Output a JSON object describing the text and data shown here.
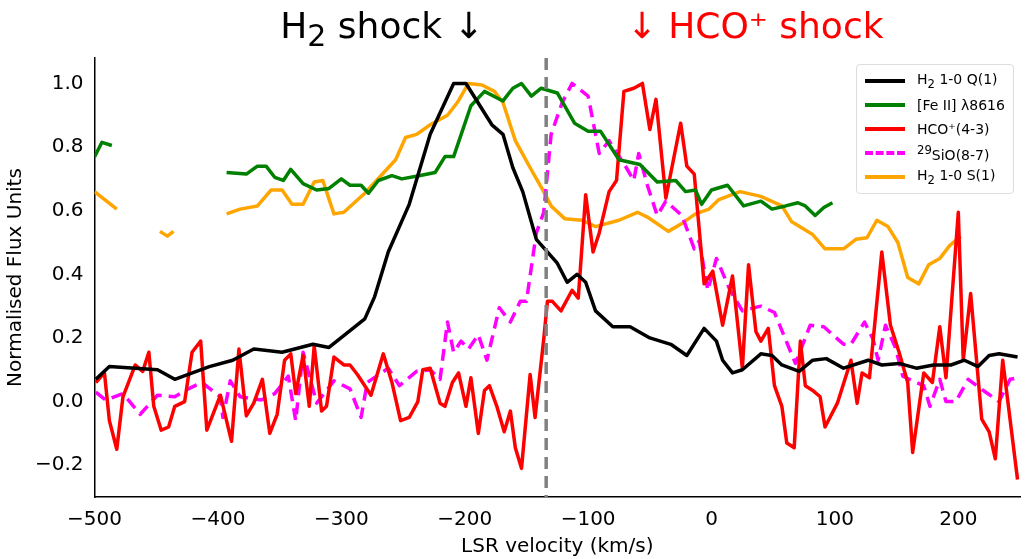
{
  "chart_data": {
    "type": "line",
    "xlabel": "LSR velocity (km/s)",
    "ylabel": "Normalised Flux Units",
    "annotations": [
      "H$_{2}$ shock ↓",
      "↓ HCO⁺ shock"
    ],
    "xlim": [
      -500,
      250
    ],
    "xticks": [
      {
        "value": -500,
        "label": "−500"
      },
      {
        "value": -400,
        "label": "−400"
      },
      {
        "value": -300,
        "label": "−300"
      },
      {
        "value": -200,
        "label": "−200"
      },
      {
        "value": -100,
        "label": "−100"
      },
      0,
      100,
      200
    ],
    "ylim": [
      -0.3,
      1.08
    ],
    "yticks": [
      {
        "value": -0.2,
        "label": "−0.2"
      },
      {
        "value": 0,
        "label": "0.0"
      },
      {
        "value": 0.2,
        "label": "0.2"
      },
      {
        "value": 0.4,
        "label": "0.4"
      },
      {
        "value": 0.6,
        "label": "0.6"
      },
      {
        "value": 0.8,
        "label": "0.8"
      },
      {
        "value": 1,
        "label": "1.0"
      }
    ],
    "grid": false,
    "legend": "top right",
    "ref_lines": [
      {
        "axis": "x",
        "value": -134,
        "color": "#808080",
        "line_style": "dashed"
      }
    ],
    "series": [
      {
        "name": "H$_{2}$ 1-0 Q(1)",
        "color": "#000000",
        "x": [
          -499,
          -488,
          -449,
          -435,
          -407,
          -388,
          -371,
          -348,
          -323,
          -310,
          -281,
          -273,
          -262,
          -245,
          -228,
          -209,
          -199,
          -178,
          -169,
          -161,
          -153,
          -142,
          -125,
          -117,
          -109,
          -102,
          -94,
          -80,
          -66,
          -50,
          -33,
          -20,
          -6,
          4,
          9,
          17,
          25,
          40,
          49,
          57,
          71,
          82,
          93,
          107,
          127,
          138,
          152,
          166,
          180,
          194,
          205,
          216,
          225,
          233,
          248
        ],
        "values": [
          0.07,
          0.11,
          0.1,
          0.07,
          0.11,
          0.13,
          0.165,
          0.155,
          0.18,
          0.17,
          0.26,
          0.33,
          0.47,
          0.62,
          0.84,
          1.0,
          1.0,
          0.87,
          0.84,
          0.735,
          0.66,
          0.51,
          0.435,
          0.375,
          0.4,
          0.375,
          0.285,
          0.235,
          0.235,
          0.2,
          0.18,
          0.145,
          0.23,
          0.19,
          0.13,
          0.09,
          0.1,
          0.15,
          0.145,
          0.115,
          0.095,
          0.13,
          0.135,
          0.105,
          0.13,
          0.115,
          0.12,
          0.105,
          0.115,
          0.115,
          0.13,
          0.11,
          0.145,
          0.15,
          0.14
        ]
      },
      {
        "name": "[Fe II] λ8616",
        "color": "#008000",
        "x": [
          -500,
          -494,
          -486,
          -440,
          -393,
          -377,
          -368,
          -361,
          -354,
          -347,
          -341,
          -331,
          -320,
          -310,
          -300,
          -293,
          -284,
          -278,
          -270,
          -259,
          -251,
          -237,
          -224,
          -216,
          -209,
          -195,
          -184,
          -169,
          -161,
          -154,
          -146,
          -138,
          -125,
          -111,
          -100,
          -90,
          -75,
          -58,
          -44,
          -29,
          -21,
          -13,
          -8,
          0,
          13,
          26,
          40,
          49,
          60,
          70,
          76,
          84,
          91,
          98
        ],
        "values": [
          0.77,
          0.815,
          0.805,
          null,
          0.72,
          0.715,
          0.74,
          0.74,
          0.705,
          0.695,
          0.73,
          0.685,
          0.665,
          0.67,
          0.7,
          0.68,
          0.68,
          0.655,
          0.695,
          0.71,
          0.7,
          0.71,
          0.72,
          0.77,
          0.77,
          0.93,
          0.975,
          0.945,
          0.985,
          1.0,
          0.96,
          0.985,
          0.97,
          0.875,
          0.85,
          0.85,
          0.76,
          0.745,
          0.69,
          0.695,
          0.66,
          0.665,
          0.62,
          0.665,
          0.68,
          0.615,
          0.63,
          0.605,
          0.615,
          0.625,
          0.615,
          0.585,
          0.61,
          0.625
        ]
      },
      {
        "name": "HCO⁺(4-3)",
        "color": "#ff0000",
        "x": [
          -499,
          -492,
          -488,
          -482,
          -477,
          -467,
          -461,
          -456,
          -452,
          -446,
          -440,
          -435,
          -427,
          -421,
          -414,
          -409,
          -398,
          -389,
          -383,
          -377,
          -371,
          -364,
          -358,
          -352,
          -346,
          -341,
          -337,
          -331,
          -326,
          -322,
          -316,
          -312,
          -306,
          -298,
          -293,
          -287,
          -281,
          -276,
          -266,
          -259,
          -252,
          -245,
          -238,
          -234,
          -228,
          -220,
          -216,
          -210,
          -205,
          -199,
          -195,
          -189,
          -184,
          -180,
          -174,
          -168,
          -163,
          -159,
          -154,
          -147,
          -143,
          -136,
          -133,
          -129,
          -122,
          -113,
          -108,
          -102,
          -96,
          -91,
          -83,
          -77,
          -71,
          -63,
          -56,
          -50,
          -45,
          -37,
          -25,
          -20,
          -14,
          -6,
          1,
          9,
          17,
          25,
          30,
          36,
          40,
          46,
          51,
          57,
          61,
          67,
          72,
          76,
          82,
          88,
          92,
          102,
          113,
          118,
          122,
          128,
          138,
          145,
          152,
          159,
          163,
          172,
          179,
          185,
          190,
          200,
          204,
          210,
          219,
          225,
          230,
          236,
          248
        ],
        "values": [
          0.06,
          0.09,
          -0.06,
          -0.15,
          0.015,
          0.115,
          0.095,
          0.155,
          -0.015,
          -0.09,
          -0.08,
          -0.015,
          0.0,
          0.155,
          0.19,
          -0.09,
          0.02,
          -0.125,
          0.165,
          -0.045,
          -0.005,
          0.07,
          -0.1,
          -0.04,
          0.13,
          0.15,
          0.025,
          0.145,
          -0.015,
          0.175,
          -0.03,
          -0.015,
          0.14,
          0.115,
          0.115,
          0.085,
          0.05,
          0.02,
          0.15,
          0.06,
          -0.06,
          -0.05,
          0.0,
          0.1,
          0.105,
          -0.005,
          -0.015,
          0.06,
          0.09,
          -0.015,
          0.075,
          -0.1,
          0.035,
          0.05,
          -0.015,
          -0.095,
          -0.03,
          -0.145,
          -0.21,
          0.085,
          -0.05,
          0.195,
          0.315,
          0.315,
          0.285,
          0.35,
          0.325,
          0.65,
          0.47,
          0.53,
          0.66,
          0.695,
          0.975,
          0.985,
          1.0,
          0.855,
          0.95,
          0.64,
          0.875,
          0.74,
          0.715,
          0.37,
          0.41,
          0.24,
          0.395,
          0.105,
          0.43,
          0.22,
          0.19,
          0.23,
          0.05,
          -0.015,
          -0.13,
          -0.145,
          0.19,
          0.05,
          0.035,
          0.015,
          -0.08,
          -0.005,
          0.13,
          -0.005,
          0.09,
          0.075,
          0.47,
          0.24,
          0.155,
          0.06,
          -0.16,
          0.09,
          0.06,
          0.235,
          0.075,
          0.595,
          0.13,
          0.34,
          -0.055,
          -0.095,
          -0.18,
          0.13,
          -0.245
        ]
      },
      {
        "name": "$^{29}$SiO(8-7)",
        "color": "#ff00ff",
        "line_style": "dashed",
        "x": [
          -499,
          -491,
          -477,
          -463,
          -449,
          -435,
          -424,
          -413,
          -398,
          -396,
          -390,
          -382,
          -365,
          -354,
          -343,
          -337,
          -331,
          -320,
          -306,
          -293,
          -284,
          -279,
          -262,
          -253,
          -239,
          -228,
          -220,
          -214,
          -209,
          -203,
          -197,
          -189,
          -182,
          -172,
          -163,
          -155,
          -150,
          -142,
          -136,
          -130,
          -121,
          -113,
          -100,
          -91,
          -83,
          -69,
          -63,
          -59,
          -52,
          -44,
          -37,
          -24,
          -14,
          -10,
          -3,
          4,
          15,
          25,
          40,
          51,
          68,
          80,
          91,
          107,
          113,
          124,
          131,
          135,
          141,
          149,
          155,
          163,
          172,
          177,
          185,
          190,
          198,
          208,
          222,
          233,
          242,
          248
        ],
        "values": [
          0.03,
          0.005,
          0.025,
          -0.04,
          0.02,
          0.015,
          0.04,
          0.06,
          0.015,
          -0.05,
          0.065,
          0.015,
          0.005,
          0.025,
          0.08,
          -0.06,
          0.155,
          -0.005,
          0.065,
          0.04,
          -0.05,
          0.06,
          0.105,
          0.05,
          0.095,
          0.1,
          0.07,
          0.25,
          0.155,
          0.19,
          0.165,
          0.21,
          0.13,
          0.295,
          0.25,
          0.315,
          0.315,
          0.53,
          0.595,
          0.84,
          0.94,
          1.0,
          0.96,
          0.78,
          0.82,
          0.735,
          0.695,
          0.78,
          0.68,
          0.585,
          0.63,
          0.585,
          0.48,
          0.505,
          0.35,
          0.45,
          0.35,
          0.285,
          0.3,
          0.28,
          0.12,
          0.24,
          0.235,
          0.18,
          0.18,
          0.25,
          0.195,
          0.13,
          0.24,
          0.17,
          0.08,
          0.065,
          0.05,
          -0.015,
          0.07,
          0.0,
          0.0,
          0.07,
          0.03,
          0.0,
          0.07,
          0.075
        ]
      },
      {
        "name": "H$_{2}$ 1-0 S(1)",
        "color": "#ffa500",
        "x": [
          -500,
          -482,
          -465,
          -447,
          -441,
          -436,
          -415,
          -393,
          -382,
          -368,
          -357,
          -348,
          -340,
          -331,
          -322,
          -315,
          -306,
          -298,
          -281,
          -268,
          -256,
          -248,
          -239,
          -228,
          -214,
          -206,
          -197,
          -186,
          -176,
          -169,
          -159,
          -147,
          -136,
          -130,
          -119,
          -105,
          -94,
          -75,
          -60,
          -52,
          -35,
          -24,
          -13,
          -2,
          6,
          23,
          40,
          57,
          65,
          82,
          92,
          107,
          117,
          126,
          134,
          143,
          151,
          159,
          168,
          176,
          185,
          193,
          202
        ],
        "values": [
          0.66,
          0.605,
          null,
          0.535,
          0.52,
          0.535,
          null,
          0.59,
          0.605,
          0.615,
          0.665,
          0.665,
          0.62,
          0.62,
          0.69,
          0.695,
          0.59,
          0.595,
          0.655,
          0.71,
          0.76,
          0.83,
          0.84,
          0.87,
          0.9,
          0.94,
          1.0,
          0.995,
          0.975,
          0.94,
          0.82,
          0.735,
          0.66,
          0.615,
          0.575,
          0.57,
          0.55,
          0.57,
          0.595,
          0.58,
          0.535,
          0.56,
          0.59,
          0.605,
          0.635,
          0.66,
          0.645,
          0.615,
          0.565,
          0.525,
          0.48,
          0.48,
          0.51,
          0.515,
          0.57,
          0.55,
          0.5,
          0.39,
          0.37,
          0.43,
          0.45,
          0.49,
          0.52
        ]
      }
    ]
  }
}
